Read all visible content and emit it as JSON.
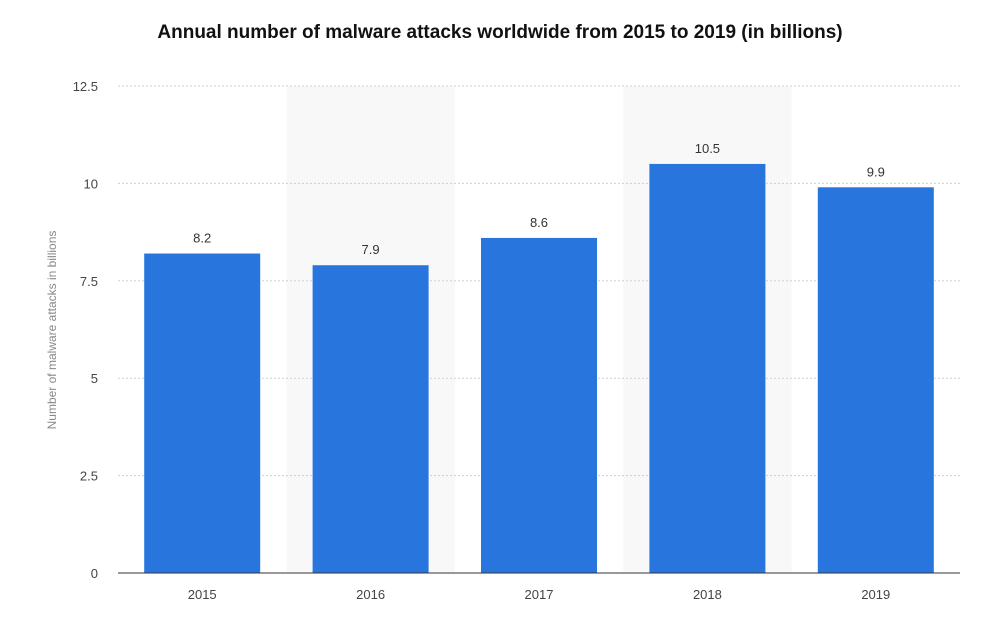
{
  "chart_data": {
    "type": "bar",
    "title": "Annual number of malware attacks worldwide from 2015 to 2019 (in billions)",
    "xlabel": "",
    "ylabel": "Number of malware attacks in billions",
    "categories": [
      "2015",
      "2016",
      "2017",
      "2018",
      "2019"
    ],
    "values": [
      8.2,
      7.9,
      8.6,
      10.5,
      9.9
    ],
    "data_labels": [
      "8.2",
      "7.9",
      "8.6",
      "10.5",
      "9.9"
    ],
    "ylim": [
      0,
      12.5
    ],
    "y_ticks": [
      0,
      2.5,
      5,
      7.5,
      10,
      12.5
    ],
    "y_tick_labels": [
      "0",
      "2.5",
      "5",
      "7.5",
      "10",
      "12.5"
    ],
    "grid": true,
    "legend": "none",
    "bar_color": "#2876dd",
    "alternating_band_color": "#f8f8f8"
  }
}
